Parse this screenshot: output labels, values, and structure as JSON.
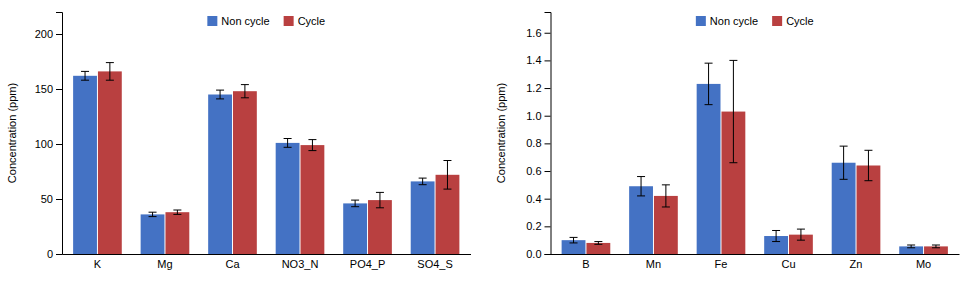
{
  "chart_data": [
    {
      "type": "bar",
      "ylabel": "Concentration (ppm)",
      "categories": [
        "K",
        "Mg",
        "Ca",
        "NO3_N",
        "PO4_P",
        "SO4_S"
      ],
      "series": [
        {
          "name": "Non cycle",
          "color": "#4472C4",
          "values": [
            162,
            36,
            145,
            101,
            46,
            66
          ],
          "errors": [
            4,
            2,
            4,
            4,
            3,
            3
          ]
        },
        {
          "name": "Cycle",
          "color": "#B94040",
          "values": [
            166,
            38,
            148,
            99,
            49,
            72
          ],
          "errors": [
            8,
            2,
            6,
            5,
            7,
            13
          ]
        }
      ],
      "ylim": [
        0,
        220
      ],
      "yticks": [
        0,
        50,
        100,
        150,
        200
      ],
      "grid": false,
      "legend": "top"
    },
    {
      "type": "bar",
      "ylabel": "Concentration (ppm)",
      "categories": [
        "B",
        "Mn",
        "Fe",
        "Cu",
        "Zn",
        "Mo"
      ],
      "series": [
        {
          "name": "Non cycle",
          "color": "#4472C4",
          "values": [
            0.1,
            0.49,
            1.23,
            0.13,
            0.66,
            0.055
          ],
          "errors": [
            0.02,
            0.07,
            0.15,
            0.04,
            0.12,
            0.01
          ]
        },
        {
          "name": "Cycle",
          "color": "#B94040",
          "values": [
            0.08,
            0.42,
            1.03,
            0.14,
            0.64,
            0.055
          ],
          "errors": [
            0.01,
            0.08,
            0.37,
            0.04,
            0.11,
            0.01
          ]
        }
      ],
      "ylim": [
        0,
        1.75
      ],
      "yticks": [
        {
          "value": 0.0,
          "label": "0.0"
        },
        0.2,
        0.4,
        0.6,
        0.8,
        {
          "value": 1.0,
          "label": "1.0"
        },
        1.2,
        1.4,
        1.6
      ],
      "grid": false,
      "legend": "top"
    }
  ]
}
